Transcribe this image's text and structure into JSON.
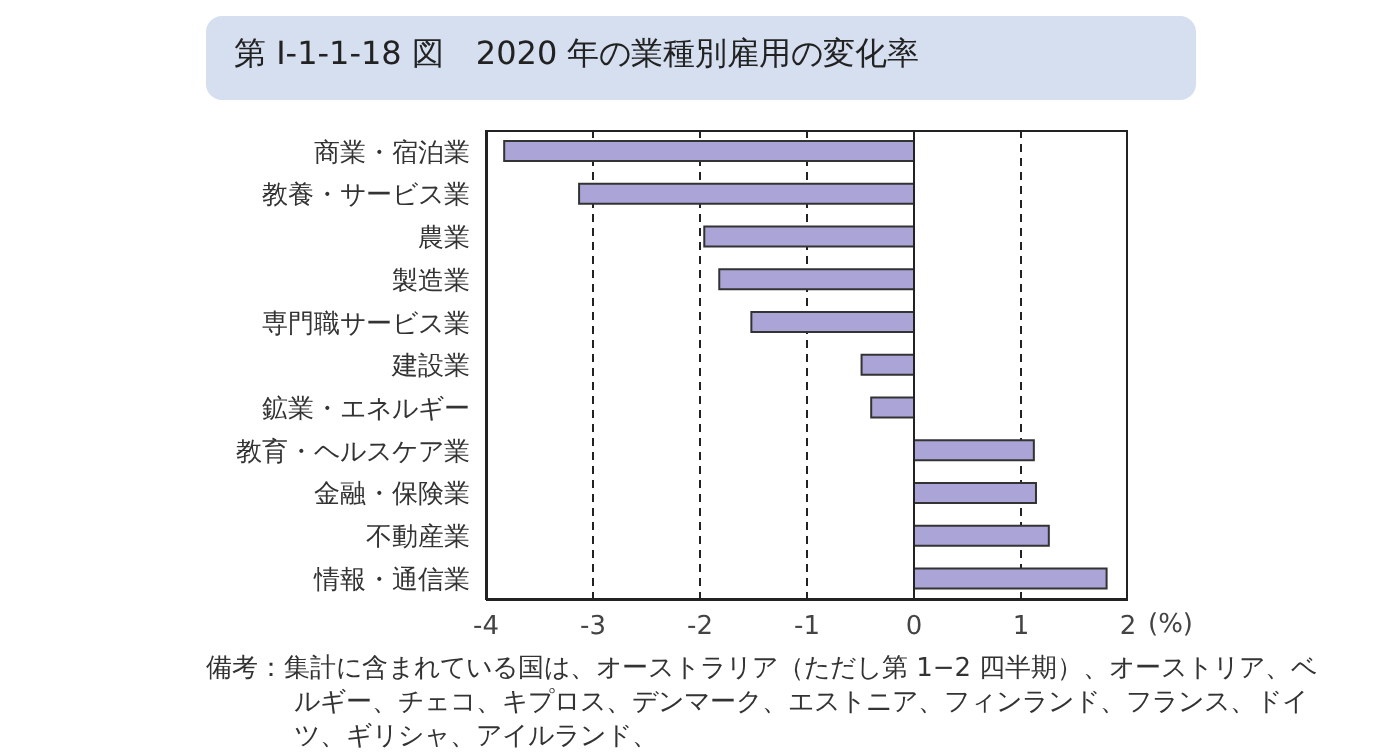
{
  "chart_data": {
    "type": "bar",
    "orientation": "horizontal",
    "title": "第 I-1-1-18 図　2020 年の業種別雇用の変化率",
    "xlabel": "(%)",
    "categories": [
      "商業・宿泊業",
      "教養・サービス業",
      "農業",
      "製造業",
      "専門職サービス業",
      "建設業",
      "鉱業・エネルギー",
      "教育・ヘルスケア業",
      "金融・保険業",
      "不動産業",
      "情報・通信業"
    ],
    "values": [
      -3.83,
      -3.13,
      -1.96,
      -1.82,
      -1.52,
      -0.49,
      -0.4,
      1.12,
      1.14,
      1.26,
      1.8
    ],
    "color": "#aaa5d6",
    "xlim": [
      -4,
      2
    ],
    "xticks": [
      -4,
      -3,
      -2,
      -1,
      0,
      1,
      2
    ],
    "grid": "x",
    "legend": false,
    "annotations": [
      "備考：集計に含まれている国は、オーストラリア（ただし第 1−2 四半期）、オーストリア、ベルギー、チェコ、キプロス、デンマーク、エストニア、フィンランド、フランス、ドイツ、ギリシャ、アイルランド、"
    ]
  }
}
